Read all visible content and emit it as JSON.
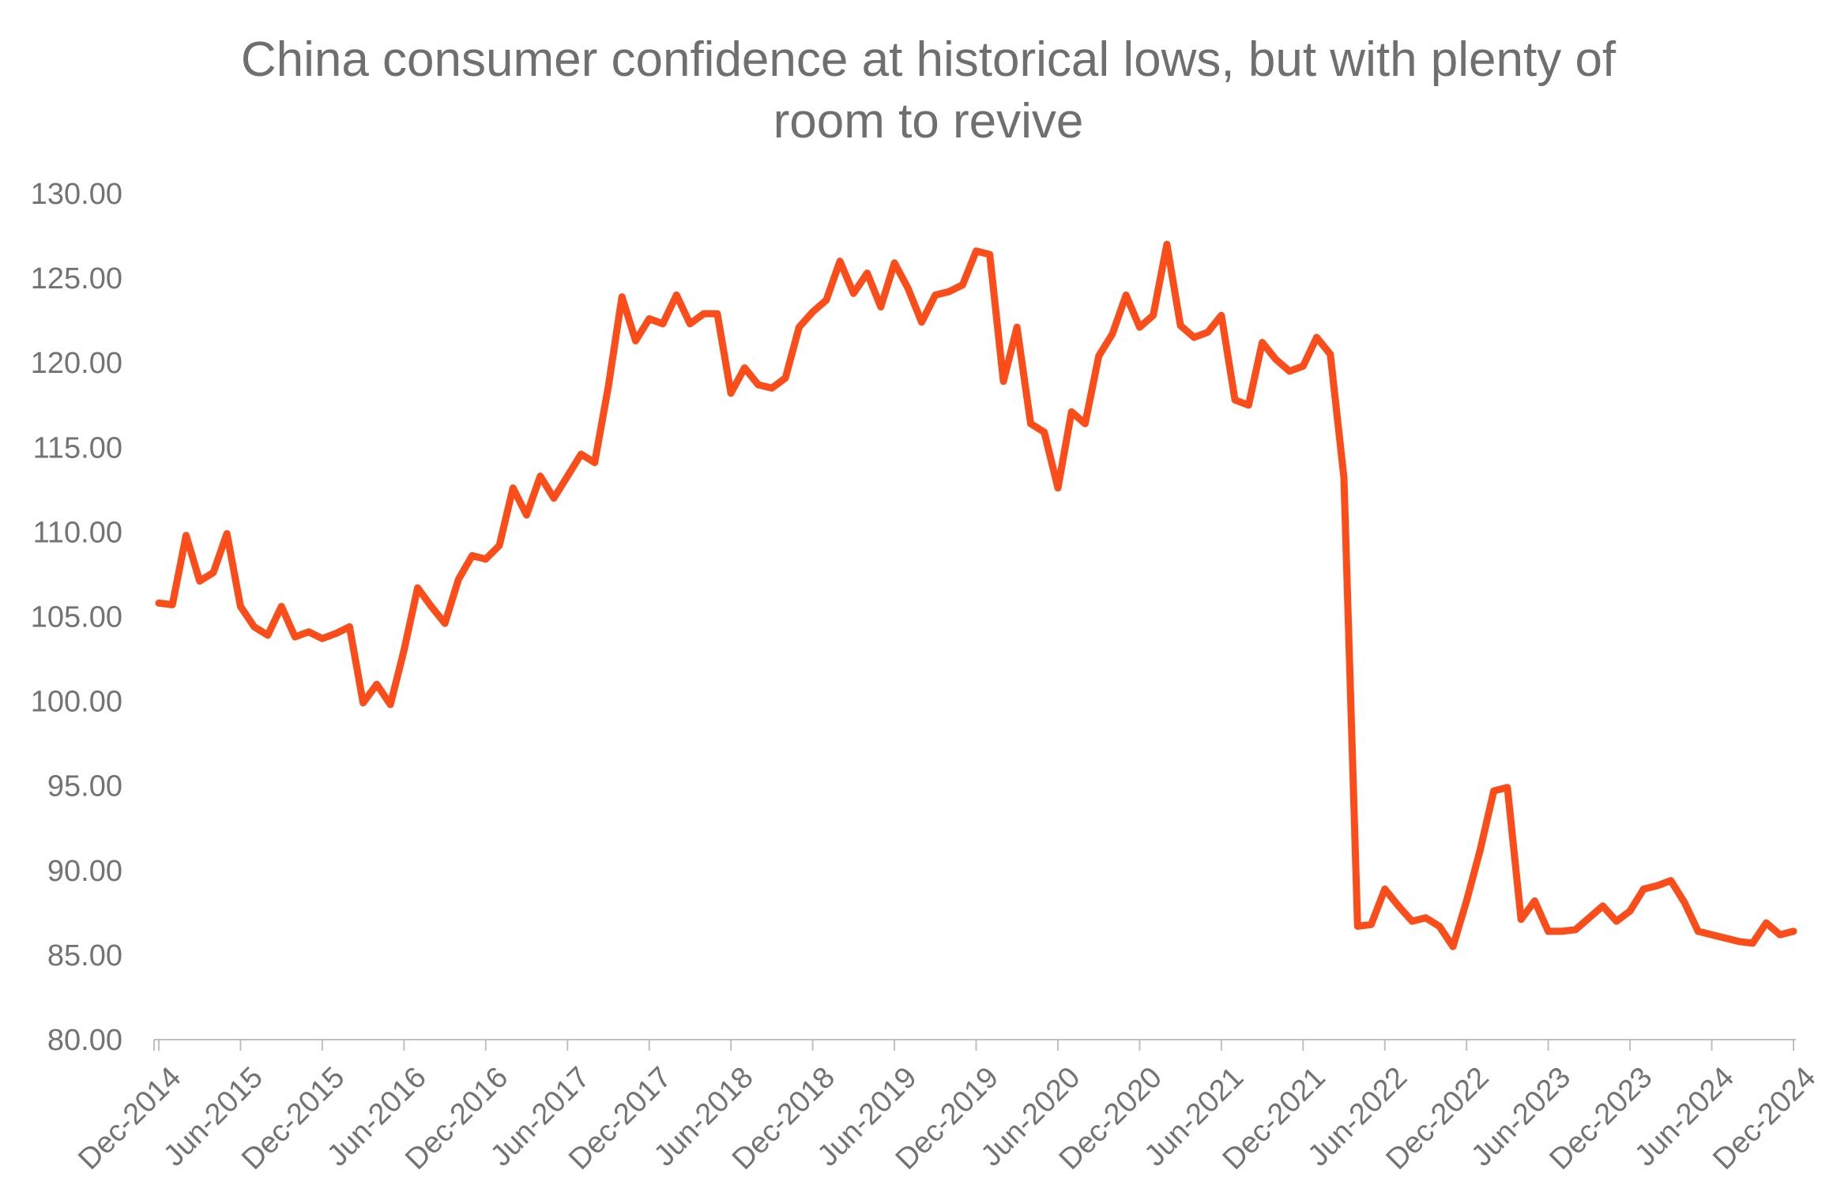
{
  "chart_data": {
    "type": "line",
    "title_lines": [
      "China consumer confidence at historical lows, but with plenty of",
      "room to revive"
    ],
    "xlabel": "",
    "ylabel": "",
    "ylim": [
      80,
      130
    ],
    "yticks": [
      "80.00",
      "85.00",
      "90.00",
      "95.00",
      "100.00",
      "105.00",
      "110.00",
      "115.00",
      "120.00",
      "125.00",
      "130.00"
    ],
    "xticks": [
      "Dec-2014",
      "Jun-2015",
      "Dec-2015",
      "Jun-2016",
      "Dec-2016",
      "Jun-2017",
      "Dec-2017",
      "Jun-2018",
      "Dec-2018",
      "Jun-2019",
      "Dec-2019",
      "Jun-2020",
      "Dec-2020",
      "Jun-2021",
      "Dec-2021",
      "Jun-2022",
      "Dec-2022",
      "Jun-2023",
      "Dec-2023",
      "Jun-2024",
      "Dec-2024"
    ],
    "grid": false,
    "line_color": "#fb4d1a",
    "x": [
      "2014-12",
      "2015-01",
      "2015-02",
      "2015-03",
      "2015-04",
      "2015-05",
      "2015-06",
      "2015-07",
      "2015-08",
      "2015-09",
      "2015-10",
      "2015-11",
      "2015-12",
      "2016-01",
      "2016-02",
      "2016-03",
      "2016-04",
      "2016-05",
      "2016-06",
      "2016-07",
      "2016-08",
      "2016-09",
      "2016-10",
      "2016-11",
      "2016-12",
      "2017-01",
      "2017-02",
      "2017-03",
      "2017-04",
      "2017-05",
      "2017-06",
      "2017-07",
      "2017-08",
      "2017-09",
      "2017-10",
      "2017-11",
      "2017-12",
      "2018-01",
      "2018-02",
      "2018-03",
      "2018-04",
      "2018-05",
      "2018-06",
      "2018-07",
      "2018-08",
      "2018-09",
      "2018-10",
      "2018-11",
      "2018-12",
      "2019-01",
      "2019-02",
      "2019-03",
      "2019-04",
      "2019-05",
      "2019-06",
      "2019-07",
      "2019-08",
      "2019-09",
      "2019-10",
      "2019-11",
      "2019-12",
      "2020-01",
      "2020-02",
      "2020-03",
      "2020-04",
      "2020-05",
      "2020-06",
      "2020-07",
      "2020-08",
      "2020-09",
      "2020-10",
      "2020-11",
      "2020-12",
      "2021-01",
      "2021-02",
      "2021-03",
      "2021-04",
      "2021-05",
      "2021-06",
      "2021-07",
      "2021-08",
      "2021-09",
      "2021-10",
      "2021-11",
      "2021-12",
      "2022-01",
      "2022-02",
      "2022-03",
      "2022-04",
      "2022-05",
      "2022-06",
      "2022-07",
      "2022-08",
      "2022-09",
      "2022-10",
      "2022-11",
      "2022-12",
      "2023-01",
      "2023-02",
      "2023-03",
      "2023-04",
      "2023-05",
      "2023-06",
      "2023-07",
      "2023-08",
      "2023-09",
      "2023-10",
      "2023-11",
      "2023-12",
      "2024-01",
      "2024-02",
      "2024-03",
      "2024-04",
      "2024-05",
      "2024-06",
      "2024-07",
      "2024-08",
      "2024-09",
      "2024-10",
      "2024-11",
      "2024-12"
    ],
    "series": [
      {
        "values": [
          105.8,
          105.7,
          109.8,
          107.1,
          107.6,
          109.9,
          105.6,
          104.4,
          103.9,
          105.6,
          103.8,
          104.1,
          103.7,
          104.0,
          104.4,
          99.9,
          101.0,
          99.8,
          103.0,
          106.7,
          105.6,
          104.6,
          107.2,
          108.6,
          108.4,
          109.2,
          112.6,
          111.0,
          113.3,
          112.0,
          113.3,
          114.6,
          114.1,
          118.6,
          123.9,
          121.3,
          122.6,
          122.3,
          124.0,
          122.3,
          122.9,
          122.9,
          118.2,
          119.7,
          118.7,
          118.5,
          119.1,
          122.1,
          123.0,
          123.7,
          126.0,
          124.1,
          125.3,
          123.3,
          125.9,
          124.4,
          122.4,
          124.0,
          124.2,
          124.6,
          126.6,
          126.4,
          118.9,
          122.1,
          116.4,
          115.9,
          112.6,
          117.1,
          116.4,
          120.4,
          121.7,
          124.0,
          122.1,
          122.8,
          127.0,
          122.2,
          121.5,
          121.8,
          122.8,
          117.8,
          117.5,
          121.2,
          120.2,
          119.5,
          119.8,
          121.5,
          120.5,
          113.2,
          86.7,
          86.8,
          88.9,
          87.9,
          87.0,
          87.2,
          86.7,
          85.5,
          88.2,
          91.2,
          94.7,
          94.9,
          87.1,
          88.2,
          86.4,
          86.4,
          86.5,
          87.2,
          87.9,
          87.0,
          87.6,
          88.9,
          89.1,
          89.4,
          88.1,
          86.4,
          86.2,
          86.0,
          85.8,
          85.7,
          86.9,
          86.2,
          86.4
        ]
      }
    ]
  }
}
